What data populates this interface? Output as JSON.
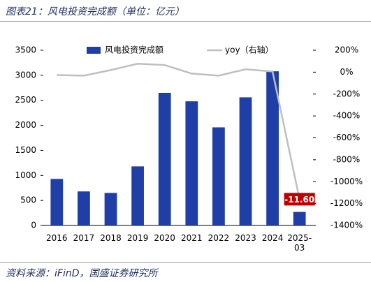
{
  "title": "图表21：风电投资完成额（单位：亿元）",
  "source": "资料来源：iFinD，国盛证券研究所",
  "chart_data": {
    "type": "bar",
    "categories": [
      "2016",
      "2017",
      "2018",
      "2019",
      "2020",
      "2021",
      "2022",
      "2023",
      "2024",
      "2025-03"
    ],
    "series": [
      {
        "name": "风电投资完成额",
        "type": "bar",
        "color": "#1f3ea6",
        "values": [
          930,
          680,
          650,
          1180,
          2650,
          2480,
          1960,
          2560,
          3080,
          270
        ]
      },
      {
        "name": "yoy（右轴）",
        "type": "line",
        "axis": "y2",
        "color": "#bfbfbf",
        "values": [
          -26,
          -32,
          19,
          77,
          65,
          -13,
          -32,
          26,
          6,
          -1160
        ],
        "value_labels": [
          null,
          null,
          null,
          null,
          null,
          null,
          null,
          null,
          null,
          "-11.60"
        ]
      }
    ],
    "ylim": [
      0,
      3500
    ],
    "yticks": [
      0,
      500,
      1000,
      1500,
      2000,
      2500,
      3000,
      3500
    ],
    "y2lim": [
      -1400,
      200
    ],
    "y2ticks": [
      {
        "value": -1400,
        "label": "-1400%"
      },
      {
        "value": -1200,
        "label": "-1200%"
      },
      {
        "value": -1000,
        "label": "-1000%"
      },
      {
        "value": -800,
        "label": "-800%"
      },
      {
        "value": -600,
        "label": "-600%"
      },
      {
        "value": -400,
        "label": "-400%"
      },
      {
        "value": -200,
        "label": "-200%"
      },
      {
        "value": 0,
        "label": "0%"
      },
      {
        "value": 200,
        "label": "200%"
      }
    ],
    "label_color": "#c00000"
  }
}
